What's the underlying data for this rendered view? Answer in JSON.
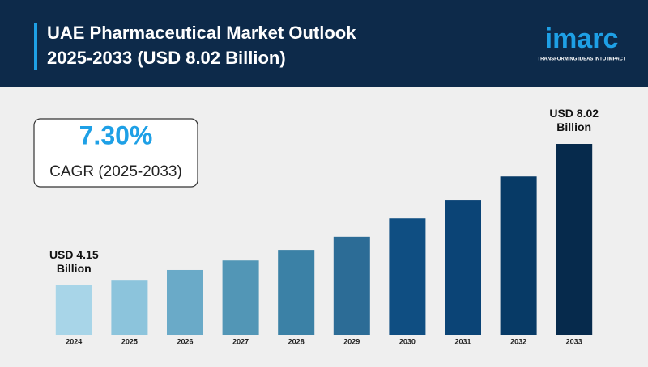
{
  "brand": {
    "name": "imarc",
    "tagline": "TRANSFORMING IDEAS INTO IMPACT"
  },
  "chart_data": {
    "type": "bar",
    "title": [
      "UAE Pharmaceutical Market Outlook",
      "2025-2033 (USD 8.02 Billion)"
    ],
    "cagr": {
      "value": "7.30%",
      "label": "CAGR (2025-2033)"
    },
    "categories": [
      "2024",
      "2025",
      "2026",
      "2027",
      "2028",
      "2029",
      "2030",
      "2031",
      "2032",
      "2033"
    ],
    "values": [
      4.15,
      4.3,
      4.57,
      4.83,
      5.12,
      5.48,
      5.98,
      6.47,
      7.13,
      8.02
    ],
    "value_labels": [
      "USD 4.15 Billion",
      null,
      null,
      null,
      null,
      null,
      null,
      null,
      null,
      "USD 8.02 Billion"
    ],
    "colors": [
      "#a8d5e8",
      "#8cc4dc",
      "#6aaac8",
      "#5296b6",
      "#3b81a6",
      "#2c6c96",
      "#0f4e82",
      "#0b4476",
      "#073a66",
      "#062a4c"
    ],
    "ylim": [
      2.8,
      8.02
    ]
  }
}
